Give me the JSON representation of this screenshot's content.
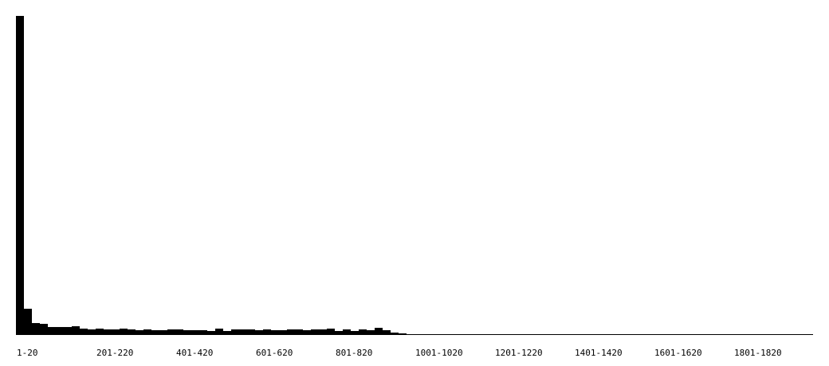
{
  "chart_data": {
    "type": "bar",
    "title": "",
    "xlabel": "",
    "ylabel": "",
    "bar_color": "#000000",
    "axis_color": "#000000",
    "background": "#ffffff",
    "grid": false,
    "legend": "none",
    "bin_width": 20,
    "ylim": [
      0,
      401
    ],
    "categories": [
      "1-20",
      "21-40",
      "41-60",
      "61-80",
      "81-100",
      "101-120",
      "121-140",
      "141-160",
      "161-180",
      "181-200",
      "201-220",
      "221-240",
      "241-260",
      "261-280",
      "281-300",
      "301-320",
      "321-340",
      "341-360",
      "361-380",
      "381-400",
      "401-420",
      "421-440",
      "441-460",
      "461-480",
      "481-500",
      "501-520",
      "521-540",
      "541-560",
      "561-580",
      "581-600",
      "601-620",
      "621-640",
      "641-660",
      "661-680",
      "681-700",
      "701-720",
      "721-740",
      "741-760",
      "761-780",
      "781-800",
      "801-820",
      "821-840",
      "841-860",
      "861-880",
      "881-900",
      "901-920",
      "921-940",
      "941-960",
      "961-980",
      "981-1000",
      "1001-1020",
      "1021-1040",
      "1041-1060",
      "1061-1080",
      "1081-1100",
      "1101-1120",
      "1121-1140",
      "1141-1160",
      "1161-1180",
      "1181-1200",
      "1201-1220",
      "1221-1240",
      "1241-1260",
      "1261-1280",
      "1281-1300",
      "1301-1320",
      "1321-1340",
      "1341-1360",
      "1361-1380",
      "1381-1400",
      "1401-1420",
      "1421-1440",
      "1441-1460",
      "1461-1480",
      "1481-1500",
      "1501-1520",
      "1521-1540",
      "1541-1560",
      "1561-1580",
      "1581-1600",
      "1601-1620",
      "1621-1640",
      "1641-1660",
      "1661-1680",
      "1681-1700",
      "1701-1720",
      "1721-1740",
      "1741-1760",
      "1761-1780",
      "1781-1800",
      "1801-1820",
      "1821-1840",
      "1841-1860",
      "1861-1880",
      "1881-1900",
      "1901-1920",
      "1921-1940",
      "1941-1960",
      "1961-1980",
      "1981-2000"
    ],
    "values": [
      401,
      32,
      14,
      13,
      9,
      9,
      9,
      10,
      7,
      6,
      7,
      6,
      6,
      7,
      6,
      5,
      6,
      5,
      5,
      6,
      6,
      5,
      5,
      5,
      4,
      7,
      4,
      6,
      6,
      6,
      5,
      6,
      5,
      5,
      6,
      6,
      5,
      6,
      6,
      7,
      4,
      6,
      4,
      6,
      5,
      8,
      5,
      2,
      1,
      0,
      0,
      0,
      0,
      0,
      0,
      0,
      0,
      0,
      0,
      0,
      0,
      0,
      0,
      0,
      0,
      0,
      0,
      0,
      0,
      0,
      0,
      0,
      0,
      0,
      0,
      0,
      0,
      0,
      0,
      0,
      0,
      0,
      0,
      0,
      0,
      0,
      0,
      0,
      0,
      0,
      0,
      0,
      0,
      0,
      0,
      0,
      0,
      0,
      0,
      0
    ],
    "tick_labels": [
      "1-20",
      "201-220",
      "401-420",
      "601-620",
      "801-820",
      "1001-1020",
      "1201-1220",
      "1401-1420",
      "1601-1620",
      "1801-1820"
    ]
  }
}
